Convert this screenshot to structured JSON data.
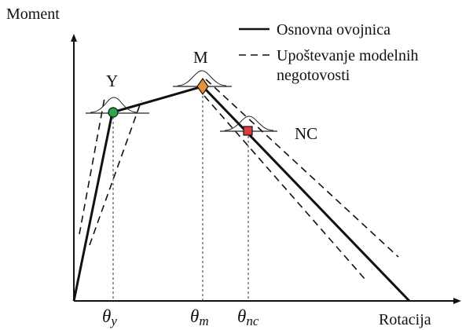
{
  "axes": {
    "y_label": "Moment",
    "x_label": "Rotacija"
  },
  "legend": {
    "items": [
      {
        "style": "solid",
        "label": "Osnovna ovojnica"
      },
      {
        "style": "dashed",
        "label_line1": "Upoštevanje modelnih",
        "label_line2": "negotovosti"
      }
    ]
  },
  "points": {
    "yield": {
      "label": "Y",
      "color": "#2aa84a",
      "marker": "circle"
    },
    "max": {
      "label": "M",
      "color": "#e8903a",
      "marker": "diamond"
    },
    "near_collapse": {
      "label": "NC",
      "color": "#e03a3a",
      "marker": "square"
    }
  },
  "ticks": {
    "theta_main": "θ",
    "y_sub": "y",
    "m_sub": "m",
    "nc_sub": "nc"
  }
}
